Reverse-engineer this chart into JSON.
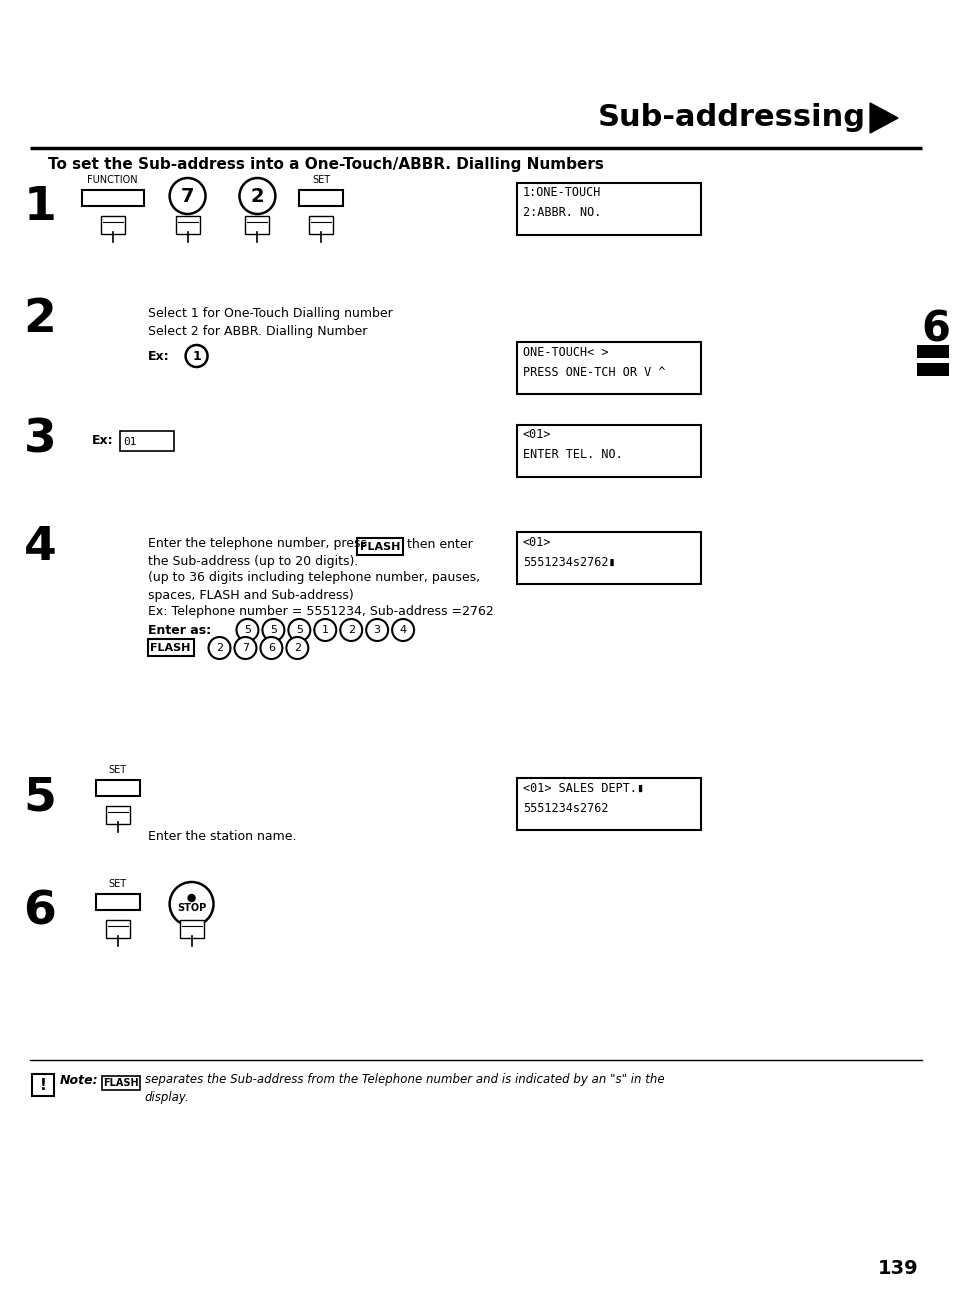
{
  "title": "Sub-addressing",
  "subtitle": "To set the Sub-address into a One-Touch/ABBR. Dialling Numbers",
  "page_number": "139",
  "background_color": "#ffffff",
  "steps": [
    {
      "num": "1",
      "buttons": [
        "FUNCTION",
        "7",
        "2",
        "SET"
      ],
      "display": [
        "1:ONE-TOUCH",
        "2:ABBR. NO."
      ]
    },
    {
      "num": "2",
      "text_lines": [
        "Select 1 for One-Touch Dialling number",
        "Select 2 for ABBR. Dialling Number"
      ],
      "ex_circle": "1",
      "display": [
        "ONE-TOUCH< >",
        "PRESS ONE-TCH OR V ^"
      ]
    },
    {
      "num": "3",
      "ex_box": "01",
      "display": [
        "<01>",
        "ENTER TEL. NO."
      ]
    },
    {
      "num": "4",
      "display": [
        "<01>",
        "5551234s2762▮"
      ]
    },
    {
      "num": "5",
      "text": "Enter the station name.",
      "display": [
        "<01> SALES DEPT.▮",
        "5551234s2762"
      ]
    },
    {
      "num": "6",
      "buttons": [
        "SET",
        "STOP"
      ]
    }
  ],
  "note_flash": "FLASH",
  "side_label": "6"
}
